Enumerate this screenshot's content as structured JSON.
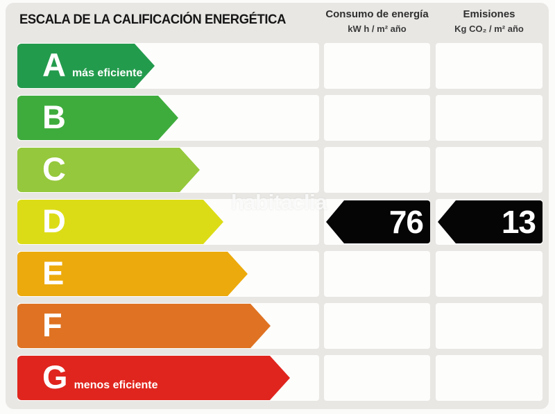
{
  "title": "ESCALA DE LA CALIFICACIÓN ENERGÉTICA",
  "columns": {
    "consumo": {
      "title": "Consumo de energía",
      "unit": "kW h / m² año"
    },
    "emisiones": {
      "title": "Emisiones",
      "unit": "Kg CO₂ / m² año"
    }
  },
  "scale": {
    "rows": [
      {
        "letter": "A",
        "label": "más eficiente",
        "color": "#239b4d",
        "arrow_len": 198
      },
      {
        "letter": "B",
        "label": "",
        "color": "#3eac3c",
        "arrow_len": 232
      },
      {
        "letter": "C",
        "label": "",
        "color": "#95c83c",
        "arrow_len": 263
      },
      {
        "letter": "D",
        "label": "",
        "color": "#dcdc16",
        "arrow_len": 297
      },
      {
        "letter": "E",
        "label": "",
        "color": "#ecaa0c",
        "arrow_len": 332
      },
      {
        "letter": "F",
        "label": "",
        "color": "#df7323",
        "arrow_len": 365
      },
      {
        "letter": "G",
        "label": "menos eficiente",
        "color": "#e0251e",
        "arrow_len": 393
      }
    ]
  },
  "rating": {
    "letter": "D",
    "consumo_value": "76",
    "emisiones_value": "13"
  },
  "watermark": "habitaclia",
  "chart_data": {
    "type": "bar",
    "title": "ESCALA DE LA CALIFICACIÓN ENERGÉTICA",
    "categories": [
      "A",
      "B",
      "C",
      "D",
      "E",
      "F",
      "G"
    ],
    "category_colors": [
      "#239b4d",
      "#3eac3c",
      "#95c83c",
      "#dcdc16",
      "#ecaa0c",
      "#df7323",
      "#e0251e"
    ],
    "category_labels": {
      "A": "más eficiente",
      "G": "menos eficiente"
    },
    "columns": [
      "Consumo de energía (kW h / m² año)",
      "Emisiones (Kg CO₂ / m² año)"
    ],
    "rating_letter": "D",
    "consumo_kwh_m2_ano": 76,
    "emisiones_kgco2_m2_ano": 13
  }
}
